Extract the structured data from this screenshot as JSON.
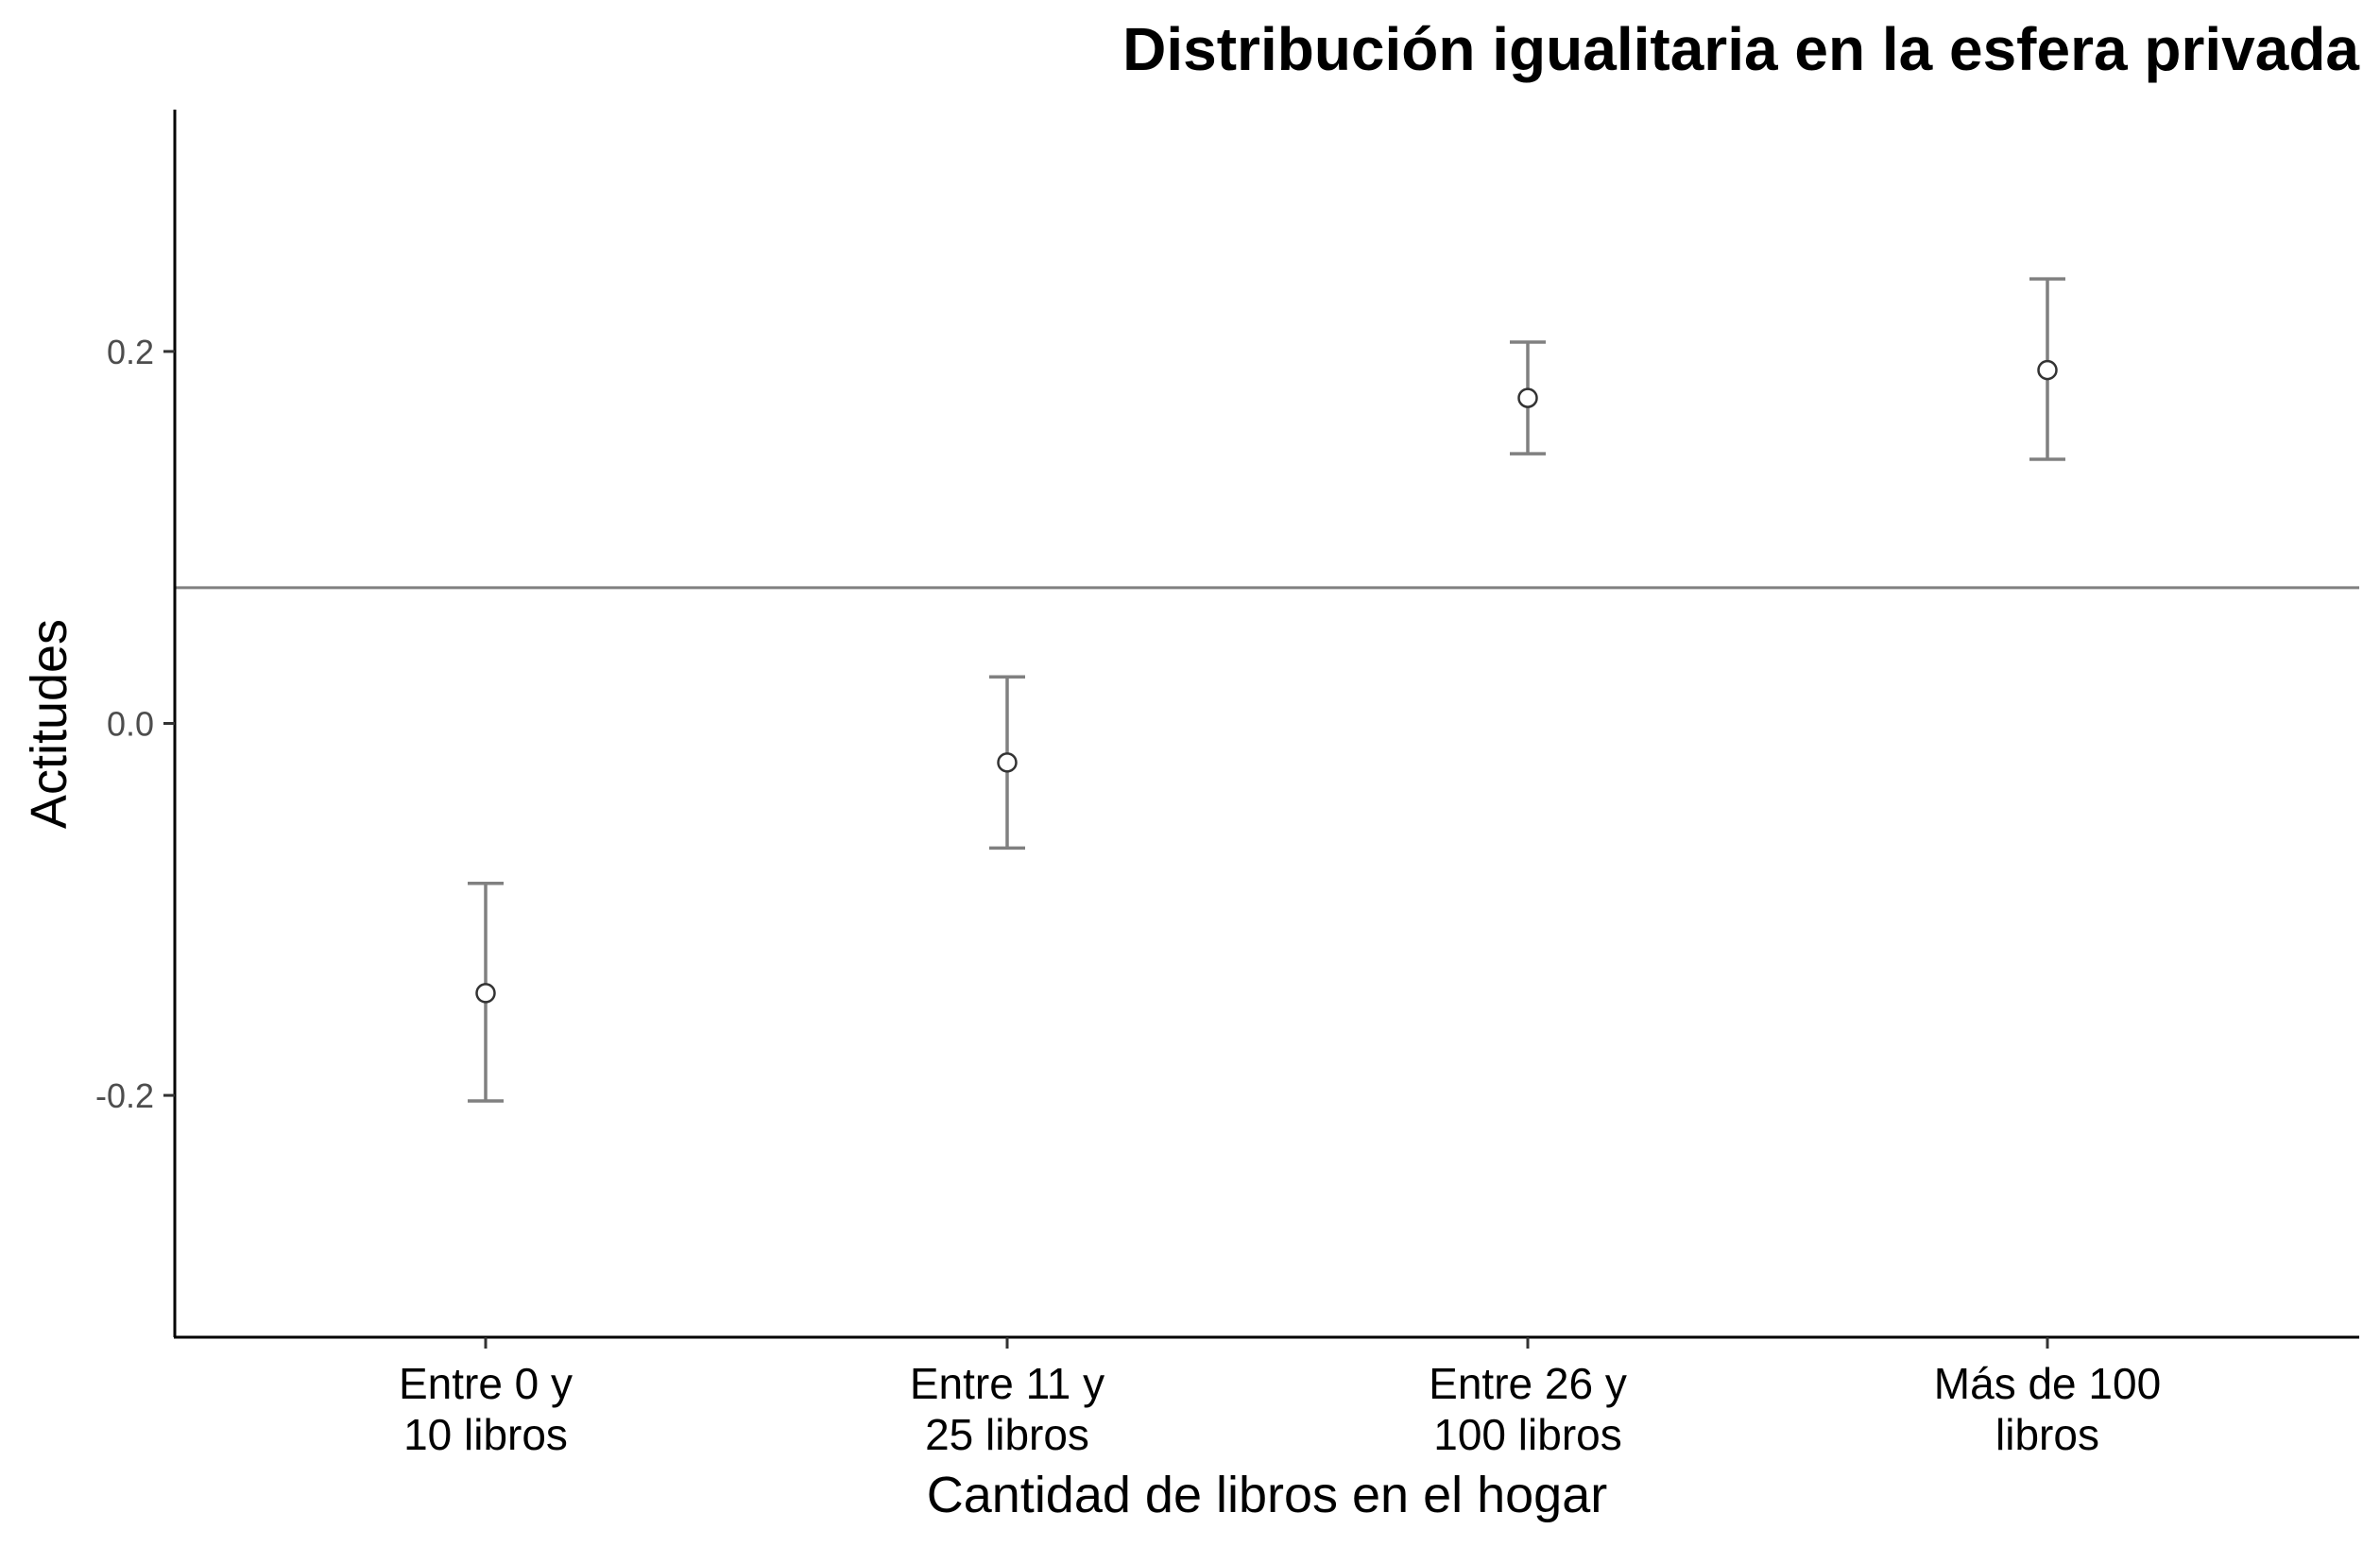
{
  "chart_data": {
    "type": "scatter",
    "title": "Distribución igualitaria en la esfera privada",
    "xlabel": "Cantidad de libros en el hogar",
    "ylabel": "Actitudes",
    "categories": [
      [
        "Entre 0 y",
        "10 libros"
      ],
      [
        "Entre 11 y",
        "25 libros"
      ],
      [
        "Entre 26 y",
        "100 libros"
      ],
      [
        "Más de 100",
        "libros"
      ]
    ],
    "points": [
      {
        "value": -0.145,
        "ci_low": -0.203,
        "ci_high": -0.086
      },
      {
        "value": -0.021,
        "ci_low": -0.067,
        "ci_high": 0.025
      },
      {
        "value": 0.175,
        "ci_low": 0.145,
        "ci_high": 0.205
      },
      {
        "value": 0.19,
        "ci_low": 0.142,
        "ci_high": 0.239
      }
    ],
    "reference_line": 0.073,
    "yticks": [
      -0.2,
      0.0,
      0.2
    ],
    "ytick_labels": [
      "-0.2",
      "0.0",
      "0.2"
    ],
    "ylim": [
      -0.33,
      0.33
    ],
    "grid": false,
    "colors": {
      "errorbar": "#808080",
      "point_fill": "#ffffff",
      "point_stroke": "#333333",
      "reference_line": "#808080",
      "axis": "#000000"
    }
  }
}
